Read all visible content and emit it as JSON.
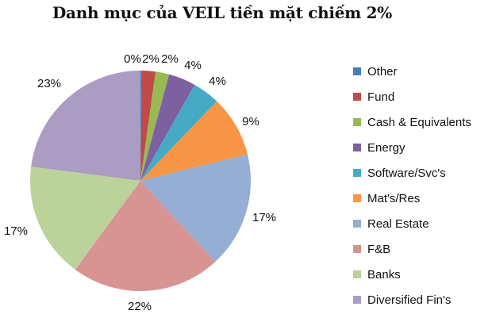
{
  "chart_data": {
    "type": "pie",
    "title": "Danh mục của VEIL  tiền mặt chiếm 2%",
    "categories": [
      "Other",
      "Fund",
      "Cash & Equivalents",
      "Energy",
      "Software/Svc's",
      "Mat's/Res",
      "Real Estate",
      "F&B",
      "Banks",
      "Diversified Fin's"
    ],
    "values": [
      0.2,
      2,
      2,
      4,
      4,
      9,
      17,
      22,
      17,
      23
    ],
    "labels": [
      "0%",
      "2%",
      "2%",
      "4%",
      "4%",
      "9%",
      "17%",
      "22%",
      "17%",
      "23%"
    ],
    "colors": [
      "#4a7ebb",
      "#be4b48",
      "#98b954",
      "#7d60a0",
      "#46aac5",
      "#f79646",
      "#94aed4",
      "#d79493",
      "#bcd29b",
      "#aa9cc2"
    ],
    "legend_position": "right",
    "start_angle_deg": 0,
    "direction": "clockwise"
  },
  "legend": {
    "items": [
      {
        "label": "Other",
        "color": "#4a7ebb"
      },
      {
        "label": "Fund",
        "color": "#be4b48"
      },
      {
        "label": "Cash & Equivalents",
        "color": "#98b954"
      },
      {
        "label": "Energy",
        "color": "#7d60a0"
      },
      {
        "label": "Software/Svc's",
        "color": "#46aac5"
      },
      {
        "label": "Mat's/Res",
        "color": "#f79646"
      },
      {
        "label": "Real Estate",
        "color": "#94aed4"
      },
      {
        "label": "F&B",
        "color": "#d79493"
      },
      {
        "label": "Banks",
        "color": "#bcd29b"
      },
      {
        "label": "Diversified Fin's",
        "color": "#aa9cc2"
      }
    ]
  }
}
